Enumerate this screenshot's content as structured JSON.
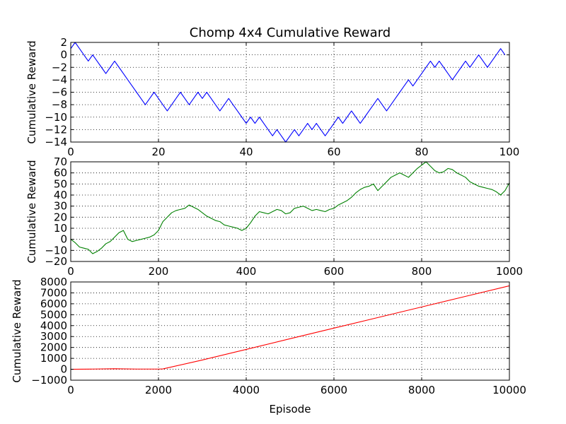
{
  "figure": {
    "title": "Chomp 4x4 Cumulative Reward",
    "xlabel": "Episode"
  },
  "chart_data": [
    {
      "type": "line",
      "ylabel": "Cumulative Reward",
      "xlim": [
        0,
        100
      ],
      "ylim": [
        -14,
        2
      ],
      "xticks": [
        0,
        20,
        40,
        60,
        80,
        100
      ],
      "yticks": [
        -14,
        -12,
        -10,
        -8,
        -6,
        -4,
        -2,
        0,
        2
      ],
      "grid": true,
      "color": "#0000ff",
      "x": [
        0,
        1,
        2,
        3,
        4,
        5,
        6,
        7,
        8,
        9,
        10,
        11,
        12,
        13,
        14,
        15,
        16,
        17,
        18,
        19,
        20,
        21,
        22,
        23,
        24,
        25,
        26,
        27,
        28,
        29,
        30,
        31,
        32,
        33,
        34,
        35,
        36,
        37,
        38,
        39,
        40,
        41,
        42,
        43,
        44,
        45,
        46,
        47,
        48,
        49,
        50,
        51,
        52,
        53,
        54,
        55,
        56,
        57,
        58,
        59,
        60,
        61,
        62,
        63,
        64,
        65,
        66,
        67,
        68,
        69,
        70,
        71,
        72,
        73,
        74,
        75,
        76,
        77,
        78,
        79,
        80,
        81,
        82,
        83,
        84,
        85,
        86,
        87,
        88,
        89,
        90,
        91,
        92,
        93,
        94,
        95,
        96,
        97,
        98,
        99
      ],
      "y": [
        1,
        2,
        1,
        0,
        -1,
        0,
        -1,
        -2,
        -3,
        -2,
        -1,
        -2,
        -3,
        -4,
        -5,
        -6,
        -7,
        -8,
        -7,
        -6,
        -7,
        -8,
        -9,
        -8,
        -7,
        -6,
        -7,
        -8,
        -7,
        -6,
        -7,
        -6,
        -7,
        -8,
        -9,
        -8,
        -7,
        -8,
        -9,
        -10,
        -11,
        -10,
        -11,
        -10,
        -11,
        -12,
        -13,
        -12,
        -13,
        -14,
        -13,
        -12,
        -13,
        -12,
        -11,
        -12,
        -11,
        -12,
        -13,
        -12,
        -11,
        -10,
        -11,
        -10,
        -9,
        -10,
        -11,
        -10,
        -9,
        -8,
        -7,
        -8,
        -9,
        -8,
        -7,
        -6,
        -5,
        -4,
        -5,
        -4,
        -3,
        -2,
        -1,
        -2,
        -1,
        -2,
        -3,
        -4,
        -3,
        -2,
        -1,
        -2,
        -1,
        0,
        -1,
        -2,
        -1,
        0,
        1,
        0
      ]
    },
    {
      "type": "line",
      "ylabel": "Cumulative Reward",
      "xlim": [
        0,
        1000
      ],
      "ylim": [
        -20,
        70
      ],
      "xticks": [
        0,
        200,
        400,
        600,
        800,
        1000
      ],
      "yticks": [
        -20,
        -10,
        0,
        10,
        20,
        30,
        40,
        50,
        60,
        70
      ],
      "grid": true,
      "color": "#008000",
      "x": [
        0,
        10,
        20,
        30,
        40,
        50,
        60,
        70,
        80,
        90,
        100,
        110,
        120,
        130,
        140,
        150,
        160,
        170,
        180,
        190,
        200,
        210,
        220,
        230,
        240,
        250,
        260,
        270,
        280,
        290,
        300,
        310,
        320,
        330,
        340,
        350,
        360,
        370,
        380,
        390,
        400,
        410,
        420,
        430,
        440,
        450,
        460,
        470,
        480,
        490,
        500,
        510,
        520,
        530,
        540,
        550,
        560,
        570,
        580,
        590,
        600,
        610,
        620,
        630,
        640,
        650,
        660,
        670,
        680,
        690,
        700,
        710,
        720,
        730,
        740,
        750,
        760,
        770,
        780,
        790,
        800,
        810,
        820,
        830,
        840,
        850,
        860,
        870,
        880,
        890,
        900,
        910,
        920,
        930,
        940,
        950,
        960,
        970,
        980,
        990,
        1000
      ],
      "y": [
        0,
        -3,
        -7,
        -8,
        -9,
        -13,
        -11,
        -8,
        -4,
        -2,
        2,
        6,
        8,
        0,
        -2,
        -1,
        0,
        1,
        2,
        4,
        8,
        16,
        20,
        24,
        26,
        27,
        28,
        31,
        29,
        27,
        24,
        21,
        19,
        17,
        16,
        13,
        12,
        11,
        10,
        8,
        10,
        15,
        21,
        25,
        24,
        23,
        25,
        27,
        26,
        23,
        24,
        28,
        29,
        30,
        28,
        26,
        27,
        26,
        25,
        27,
        28,
        31,
        33,
        35,
        38,
        42,
        45,
        47,
        48,
        50,
        44,
        48,
        52,
        56,
        58,
        60,
        58,
        56,
        60,
        64,
        67,
        70,
        66,
        62,
        60,
        61,
        64,
        63,
        60,
        58,
        56,
        52,
        50,
        48,
        47,
        46,
        45,
        43,
        40,
        44,
        51
      ]
    },
    {
      "type": "line",
      "ylabel": "Cumulative Reward",
      "xlim": [
        0,
        10000
      ],
      "ylim": [
        -1000,
        8000
      ],
      "xticks": [
        0,
        2000,
        4000,
        6000,
        8000,
        10000
      ],
      "yticks": [
        -1000,
        0,
        1000,
        2000,
        3000,
        4000,
        5000,
        6000,
        7000,
        8000
      ],
      "grid": true,
      "color": "#ff0000",
      "x": [
        0,
        500,
        1000,
        1500,
        2000,
        2100,
        3000,
        4000,
        5000,
        6000,
        7000,
        8000,
        9000,
        10000
      ],
      "y": [
        0,
        20,
        50,
        20,
        20,
        30,
        850,
        1820,
        2800,
        3770,
        4740,
        5710,
        6680,
        7650
      ]
    }
  ]
}
